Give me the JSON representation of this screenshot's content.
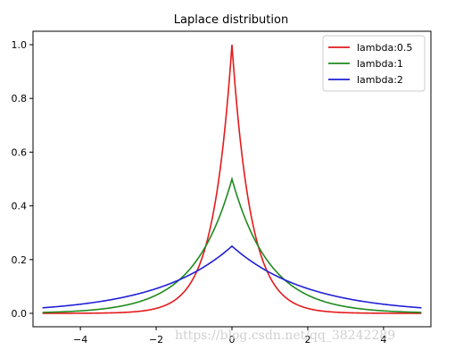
{
  "chart_data": {
    "type": "line",
    "title": "Laplace distribution",
    "xlabel": "",
    "ylabel": "",
    "xlim": [
      -5.25,
      5.25
    ],
    "ylim": [
      -0.05,
      1.05
    ],
    "x_ticks": [
      -4,
      -2,
      0,
      2,
      4
    ],
    "y_ticks": [
      0.0,
      0.2,
      0.4,
      0.6,
      0.8,
      1.0
    ],
    "x_tick_labels": [
      "−4",
      "−2",
      "0",
      "2",
      "4"
    ],
    "y_tick_labels": [
      "0.0",
      "0.2",
      "0.4",
      "0.6",
      "0.8",
      "1.0"
    ],
    "x_domain": [
      -5,
      5
    ],
    "grid": false,
    "legend_position": "top-right",
    "series": [
      {
        "name": "lambda:0.5",
        "scale": 0.5,
        "color": "#e31a1c"
      },
      {
        "name": "lambda:1",
        "scale": 1,
        "color": "#1f8a1f"
      },
      {
        "name": "lambda:2",
        "scale": 2,
        "color": "#1f1fd6"
      }
    ]
  },
  "watermark": "https://blog.csdn.net/qq_38242289"
}
